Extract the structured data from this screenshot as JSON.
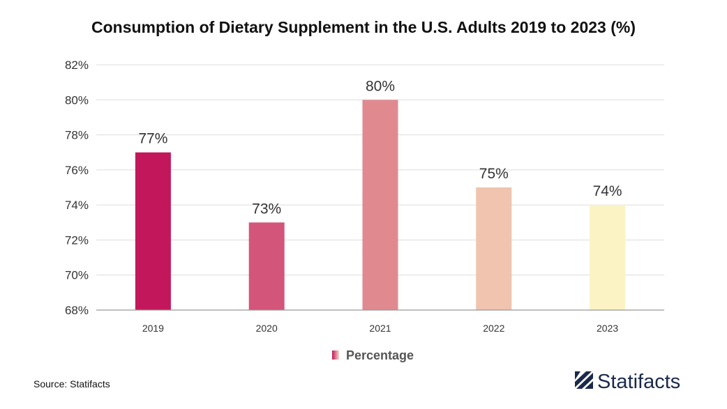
{
  "chart_data": {
    "type": "bar",
    "title": "Consumption of Dietary Supplement in the U.S. Adults 2019 to 2023 (%)",
    "categories": [
      "2019",
      "2020",
      "2021",
      "2022",
      "2023"
    ],
    "values": [
      77,
      73,
      80,
      75,
      74
    ],
    "data_labels": [
      "77%",
      "73%",
      "80%",
      "75%",
      "74%"
    ],
    "bar_colors": [
      "#c2185b",
      "#d3557a",
      "#e08a90",
      "#f0c4ae",
      "#fbf3c4"
    ],
    "ylim": [
      68,
      82
    ],
    "yticks": [
      68,
      70,
      72,
      74,
      76,
      78,
      80,
      82
    ],
    "ytick_labels": [
      "68%",
      "70%",
      "72%",
      "74%",
      "76%",
      "78%",
      "80%",
      "82%"
    ],
    "xlabel": "",
    "ylabel": "",
    "grid": true,
    "legend": {
      "label": "Percentage",
      "position": "bottom-center"
    }
  },
  "source": "Source: Statifacts",
  "brand": "Statifacts",
  "colors": {
    "grid": "#dddddd",
    "axis": "#999999",
    "brand": "#1b2a4a"
  }
}
